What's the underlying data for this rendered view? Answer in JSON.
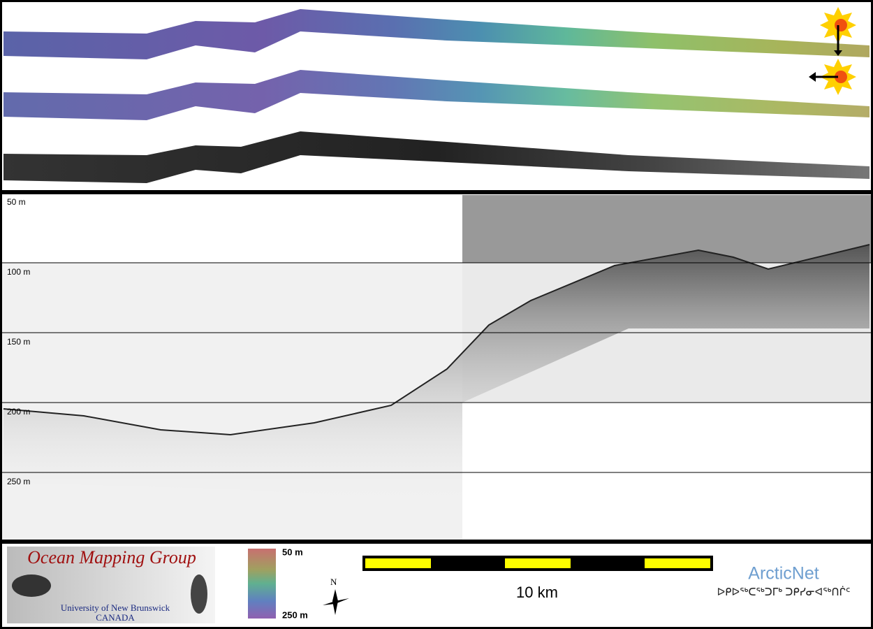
{
  "profile": {
    "depth_labels": [
      "50 m",
      "100 m",
      "150 m",
      "200 m",
      "250 m"
    ]
  },
  "footer": {
    "logo": {
      "title": "Ocean Mapping Group",
      "university": "University of New Brunswick",
      "country": "CANADA"
    },
    "colorbar": {
      "top": "50 m",
      "bottom": "250 m"
    },
    "north": "N",
    "scale": "10 km",
    "partner": {
      "name": "ArcticNet",
      "syllabics": "ᐅᑭᐅᖅᑕᖅᑐᒥᒃ ᑐᑭᓯᓂᐊᖅᑎᒌᑦ"
    }
  }
}
